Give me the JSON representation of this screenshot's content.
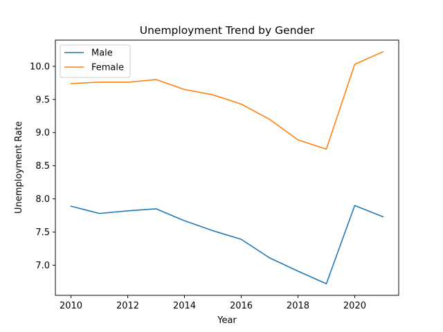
{
  "chart_data": {
    "type": "line",
    "title": "Unemployment Trend by Gender",
    "xlabel": "Year",
    "ylabel": "Unemployment Rate",
    "x": [
      2010,
      2011,
      2012,
      2013,
      2014,
      2015,
      2016,
      2017,
      2018,
      2019,
      2020,
      2021
    ],
    "xticks": [
      2010,
      2012,
      2014,
      2016,
      2018,
      2020
    ],
    "xtick_labels": [
      "2010",
      "2012",
      "2014",
      "2016",
      "2018",
      "2020"
    ],
    "yticks": [
      7.0,
      7.5,
      8.0,
      8.5,
      9.0,
      9.5,
      10.0
    ],
    "ytick_labels": [
      "7.0",
      "7.5",
      "8.0",
      "8.5",
      "9.0",
      "9.5",
      "10.0"
    ],
    "xlim": [
      2009.45,
      2021.55
    ],
    "ylim": [
      6.545,
      10.395
    ],
    "grid": false,
    "legend_position": "upper-left",
    "series": [
      {
        "name": "Male",
        "color": "#1f77b4",
        "values": [
          7.89,
          7.78,
          7.82,
          7.85,
          7.67,
          7.52,
          7.39,
          7.11,
          6.91,
          6.72,
          7.9,
          7.73
        ]
      },
      {
        "name": "Female",
        "color": "#ff7f0e",
        "values": [
          9.74,
          9.76,
          9.76,
          9.8,
          9.65,
          9.57,
          9.43,
          9.2,
          8.89,
          8.75,
          10.03,
          10.22
        ]
      }
    ]
  }
}
